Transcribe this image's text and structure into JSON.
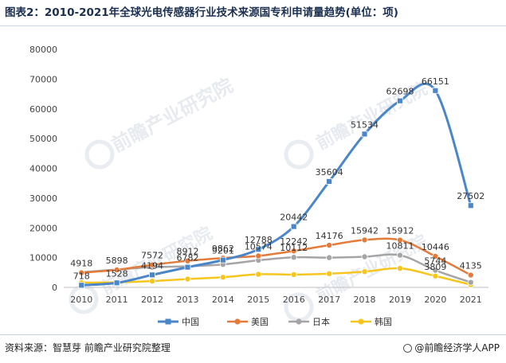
{
  "header": {
    "title": "图表2：2010-2021年全球光电传感器行业技术来源国专利申请量趋势(单位：项)"
  },
  "footer": {
    "source": "资料来源：智慧芽 前瞻产业研究院整理",
    "credit": "@前瞻经济学人APP"
  },
  "watermark": {
    "text": "前瞻产业研究院"
  },
  "chart_data": {
    "type": "line",
    "title": "图表2：2010-2021年全球光电传感器行业技术来源国专利申请量趋势(单位：项)",
    "categories": [
      "2010",
      "2011",
      "2012",
      "2013",
      "2014",
      "2015",
      "2016",
      "2017",
      "2018",
      "2019",
      "2020",
      "2021"
    ],
    "ylim": [
      0,
      80000
    ],
    "yticks": [
      0,
      10000,
      20000,
      30000,
      40000,
      50000,
      60000,
      70000,
      80000
    ],
    "grid": false,
    "legend": "bottom",
    "smooth": true,
    "series": [
      {
        "name": "中国",
        "color": "#4a86c8",
        "marker": "square",
        "width": 3,
        "values": [
          718,
          1528,
          4194,
          6782,
          9201,
          12788,
          20442,
          35604,
          51534,
          62698,
          66151,
          27502
        ]
      },
      {
        "name": "美国",
        "color": "#e47b3a",
        "marker": "circle",
        "width": 2.5,
        "values": [
          4918,
          5898,
          7572,
          8912,
          9862,
          10574,
          12242,
          14176,
          15942,
          15912,
          10446,
          4135
        ]
      },
      {
        "name": "日本",
        "color": "#a5a5a5",
        "marker": "circle",
        "width": 2.5,
        "values": [
          5100,
          6000,
          6800,
          7100,
          7700,
          9100,
          10112,
          10000,
          10300,
          10811,
          5744,
          1700
        ]
      },
      {
        "name": "韩国",
        "color": "#f7c61e",
        "marker": "circle",
        "width": 2.5,
        "values": [
          1600,
          1700,
          2100,
          2800,
          3400,
          4400,
          4300,
          4600,
          5300,
          6400,
          3809,
          900
        ]
      }
    ],
    "data_labels": [
      {
        "text": "4918",
        "cat": 0,
        "y": 4918
      },
      {
        "text": "718",
        "cat": 0,
        "y": 718
      },
      {
        "text": "5898",
        "cat": 1,
        "y": 5898
      },
      {
        "text": "1528",
        "cat": 1,
        "y": 1528
      },
      {
        "text": "7572",
        "cat": 2,
        "y": 7572
      },
      {
        "text": "4194",
        "cat": 2,
        "y": 4194
      },
      {
        "text": "8912",
        "cat": 3,
        "y": 8912
      },
      {
        "text": "6782",
        "cat": 3,
        "y": 6782
      },
      {
        "text": "9862",
        "cat": 4,
        "y": 9862
      },
      {
        "text": "9201",
        "cat": 4,
        "y": 9201
      },
      {
        "text": "12788",
        "cat": 5,
        "y": 12788
      },
      {
        "text": "10574",
        "cat": 5,
        "y": 10574
      },
      {
        "text": "20442",
        "cat": 6,
        "y": 20442
      },
      {
        "text": "12242",
        "cat": 6,
        "y": 12242
      },
      {
        "text": "10112",
        "cat": 6,
        "y": 10112
      },
      {
        "text": "35604",
        "cat": 7,
        "y": 35604
      },
      {
        "text": "14176",
        "cat": 7,
        "y": 14176
      },
      {
        "text": "51534",
        "cat": 8,
        "y": 51534
      },
      {
        "text": "15942",
        "cat": 8,
        "y": 15942
      },
      {
        "text": "62698",
        "cat": 9,
        "y": 62698
      },
      {
        "text": "15912",
        "cat": 9,
        "y": 15912
      },
      {
        "text": "10811",
        "cat": 9,
        "y": 10811
      },
      {
        "text": "66151",
        "cat": 10,
        "y": 66151
      },
      {
        "text": "10446",
        "cat": 10,
        "y": 10446
      },
      {
        "text": "3809",
        "cat": 10,
        "y": 3809
      },
      {
        "text": "5744",
        "cat": 10,
        "y": 5744
      },
      {
        "text": "27502",
        "cat": 11,
        "y": 27502
      },
      {
        "text": "4135",
        "cat": 11,
        "y": 4135
      }
    ]
  }
}
